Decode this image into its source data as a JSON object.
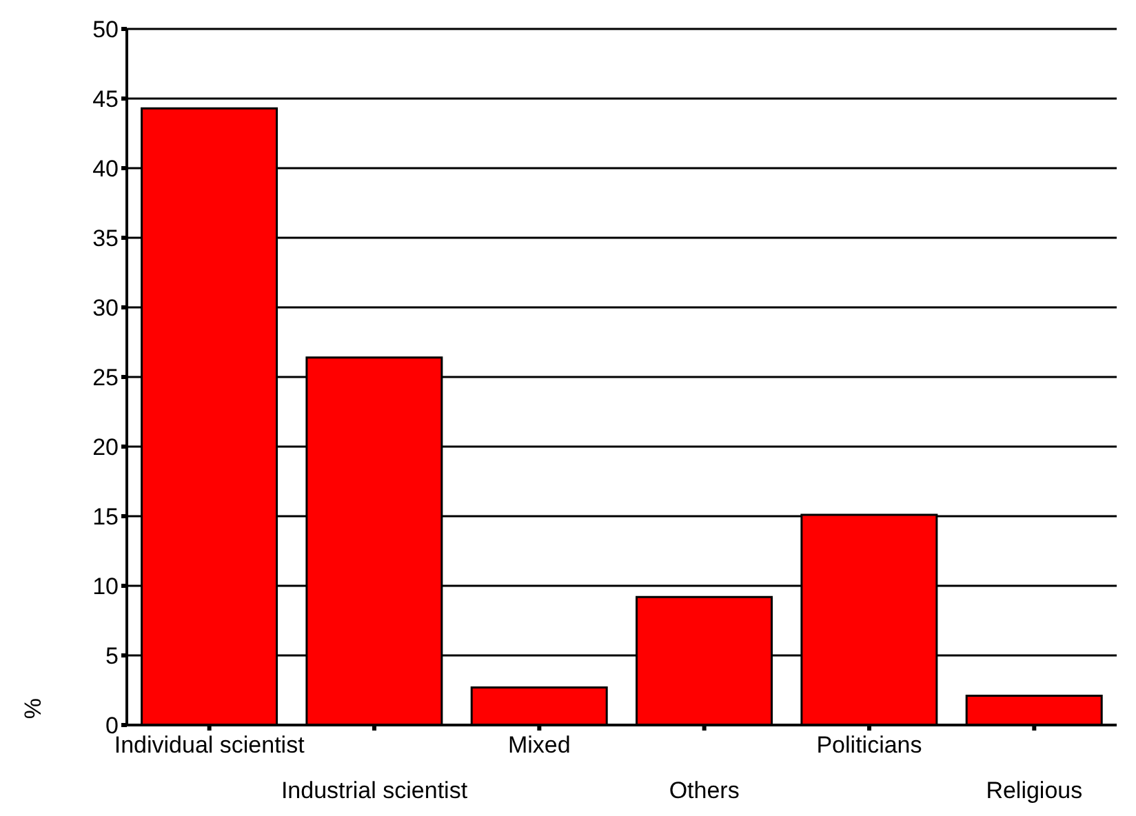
{
  "chart_data": {
    "type": "bar",
    "ylabel": "%",
    "categories": [
      "Individual scientist",
      "Industrial scientist",
      "Mixed",
      "Others",
      "Politicians",
      "Religious"
    ],
    "values": [
      44.3,
      26.4,
      2.7,
      9.2,
      15.1,
      2.1
    ],
    "color": "#ff0000",
    "ylim": [
      0,
      50
    ],
    "yticks": [
      0,
      5,
      10,
      15,
      20,
      25,
      30,
      35,
      40,
      45,
      50
    ],
    "grid": "y",
    "legend": false
  }
}
